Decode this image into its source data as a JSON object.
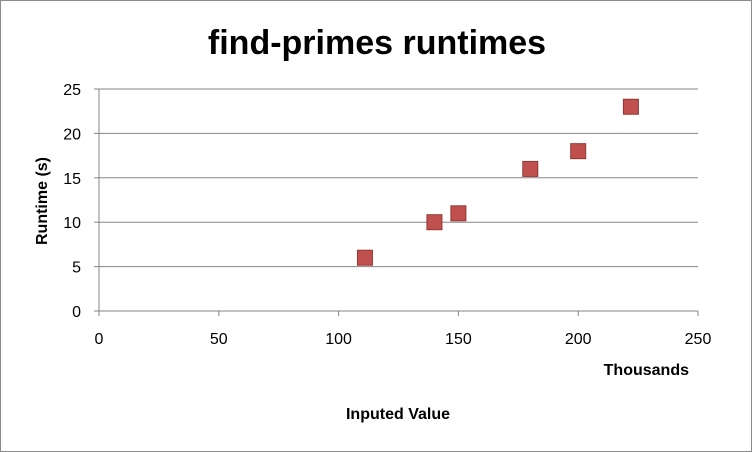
{
  "chart_data": {
    "type": "scatter",
    "title": "find-primes runtimes",
    "xlabel": "Inputed Value",
    "ylabel": "Runtime (s)",
    "x_display_units": "Thousands",
    "x": [
      111000,
      140000,
      150000,
      180000,
      200000,
      222000
    ],
    "y": [
      6,
      10,
      11,
      16,
      18,
      23
    ],
    "xlim": [
      0,
      250000
    ],
    "ylim": [
      0,
      25
    ],
    "x_ticks": [
      0,
      50000,
      100000,
      150000,
      200000,
      250000
    ],
    "x_tick_labels": [
      "0",
      "50",
      "100",
      "150",
      "200",
      "250"
    ],
    "y_ticks": [
      0,
      5,
      10,
      15,
      20,
      25
    ],
    "y_tick_labels": [
      "0",
      "5",
      "10",
      "15",
      "20",
      "25"
    ],
    "grid": "horizontal",
    "legend": "none",
    "marker": "square",
    "colors": {
      "marker_fill": "#c0504d",
      "marker_edge": "#953735",
      "gridline": "#868686",
      "axis": "#868686"
    }
  }
}
